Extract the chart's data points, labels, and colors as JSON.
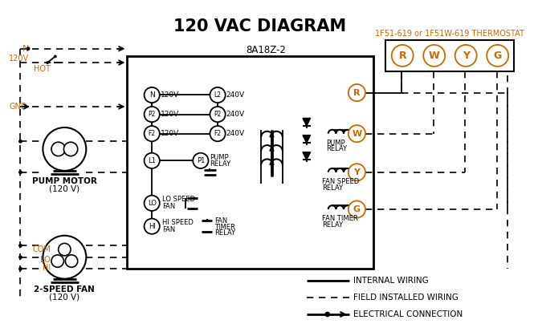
{
  "title": "120 VAC DIAGRAM",
  "bg_color": "#ffffff",
  "black": "#000000",
  "orange": "#cc6600",
  "thermostat_label": "1F51-619 or 1F51W-619 THERMOSTAT",
  "control_box_label": "8A18Z-2"
}
